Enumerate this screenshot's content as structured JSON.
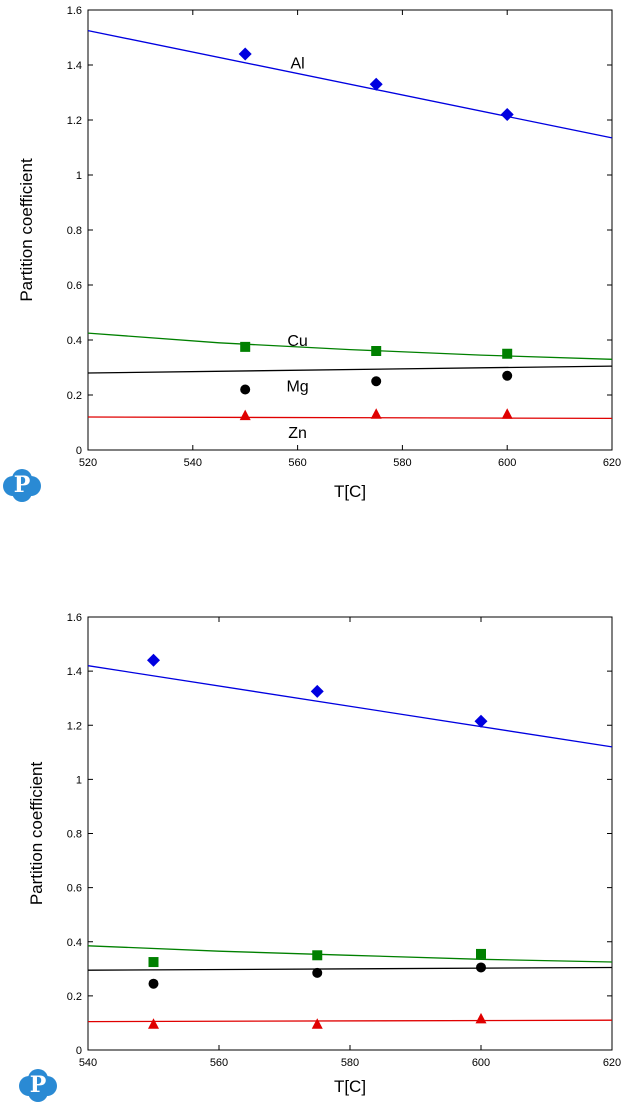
{
  "chart_data": [
    {
      "type": "scatter",
      "title": "",
      "xlabel": "T[C]",
      "ylabel": "Partition coefficient",
      "xlim": [
        520,
        620
      ],
      "ylim": [
        0,
        1.6
      ],
      "xticks": [
        "520",
        "540",
        "560",
        "580",
        "600",
        "620"
      ],
      "yticks": [
        "0",
        "0.2",
        "0.4",
        "0.6",
        "0.8",
        "1",
        "1.2",
        "1.4",
        "1.6"
      ],
      "grid": false,
      "legend": "none",
      "series": [
        {
          "name": "Al",
          "color": "#0000e0",
          "marker": "diamond",
          "points": [
            [
              550,
              1.44
            ],
            [
              575,
              1.33
            ],
            [
              600,
              1.22
            ]
          ],
          "fit": [
            [
              520,
              1.525
            ],
            [
              620,
              1.135
            ]
          ],
          "label_at": [
            560,
            1.41
          ]
        },
        {
          "name": "Cu",
          "color": "#008000",
          "marker": "square",
          "points": [
            [
              550,
              0.375
            ],
            [
              575,
              0.36
            ],
            [
              600,
              0.35
            ]
          ],
          "fit": [
            [
              520,
              0.425
            ],
            [
              545,
              0.39
            ],
            [
              570,
              0.365
            ],
            [
              595,
              0.345
            ],
            [
              620,
              0.33
            ]
          ],
          "label_at": [
            560,
            0.4
          ]
        },
        {
          "name": "Mg",
          "color": "#000000",
          "marker": "circle",
          "points": [
            [
              550,
              0.22
            ],
            [
              575,
              0.25
            ],
            [
              600,
              0.27
            ]
          ],
          "fit": [
            [
              520,
              0.28
            ],
            [
              620,
              0.305
            ]
          ],
          "label_at": [
            560,
            0.235
          ]
        },
        {
          "name": "Zn",
          "color": "#e00000",
          "marker": "triangle",
          "points": [
            [
              550,
              0.125
            ],
            [
              575,
              0.13
            ],
            [
              600,
              0.13
            ]
          ],
          "fit": [
            [
              520,
              0.12
            ],
            [
              620,
              0.115
            ]
          ],
          "label_at": [
            560,
            0.065
          ]
        }
      ]
    },
    {
      "type": "scatter",
      "title": "",
      "xlabel": "T[C]",
      "ylabel": "Partition coefficient",
      "xlim": [
        540,
        620
      ],
      "ylim": [
        0,
        1.6
      ],
      "xticks": [
        "540",
        "560",
        "580",
        "600",
        "620"
      ],
      "yticks": [
        "0",
        "0.2",
        "0.4",
        "0.6",
        "0.8",
        "1",
        "1.2",
        "1.4",
        "1.6"
      ],
      "grid": false,
      "legend": "none",
      "series": [
        {
          "color": "#0000e0",
          "marker": "diamond",
          "points": [
            [
              550,
              1.44
            ],
            [
              575,
              1.325
            ],
            [
              600,
              1.215
            ]
          ],
          "fit": [
            [
              540,
              1.42
            ],
            [
              620,
              1.12
            ]
          ]
        },
        {
          "color": "#008000",
          "marker": "square",
          "points": [
            [
              550,
              0.325
            ],
            [
              575,
              0.35
            ],
            [
              600,
              0.355
            ]
          ],
          "fit": [
            [
              540,
              0.385
            ],
            [
              560,
              0.365
            ],
            [
              580,
              0.35
            ],
            [
              600,
              0.335
            ],
            [
              620,
              0.325
            ]
          ]
        },
        {
          "color": "#000000",
          "marker": "circle",
          "points": [
            [
              550,
              0.245
            ],
            [
              575,
              0.285
            ],
            [
              600,
              0.305
            ]
          ],
          "fit": [
            [
              540,
              0.295
            ],
            [
              620,
              0.305
            ]
          ]
        },
        {
          "color": "#e00000",
          "marker": "triangle",
          "points": [
            [
              550,
              0.095
            ],
            [
              575,
              0.095
            ],
            [
              600,
              0.115
            ]
          ],
          "fit": [
            [
              540,
              0.105
            ],
            [
              620,
              0.11
            ]
          ]
        }
      ]
    }
  ],
  "logo": {
    "glyph": "P",
    "color": "#2a8ad4",
    "name": "pandat-logo-icon"
  }
}
